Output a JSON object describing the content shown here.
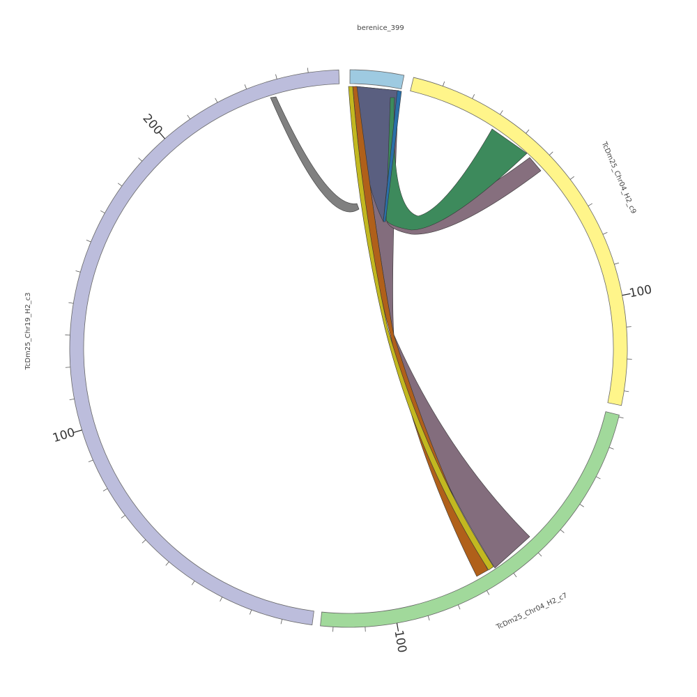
{
  "segments": [
    {
      "label": "berenice_399"
    },
    {
      "label": "TcDm25_Chr04_H2_c9",
      "tick_labels": [
        "100"
      ]
    },
    {
      "label": "TcDm25_Chr04_H2_c7",
      "tick_labels": [
        "100"
      ]
    },
    {
      "label": "TcDm25_Chr19_H2_c3",
      "tick_labels": [
        "100",
        "200"
      ]
    }
  ]
}
